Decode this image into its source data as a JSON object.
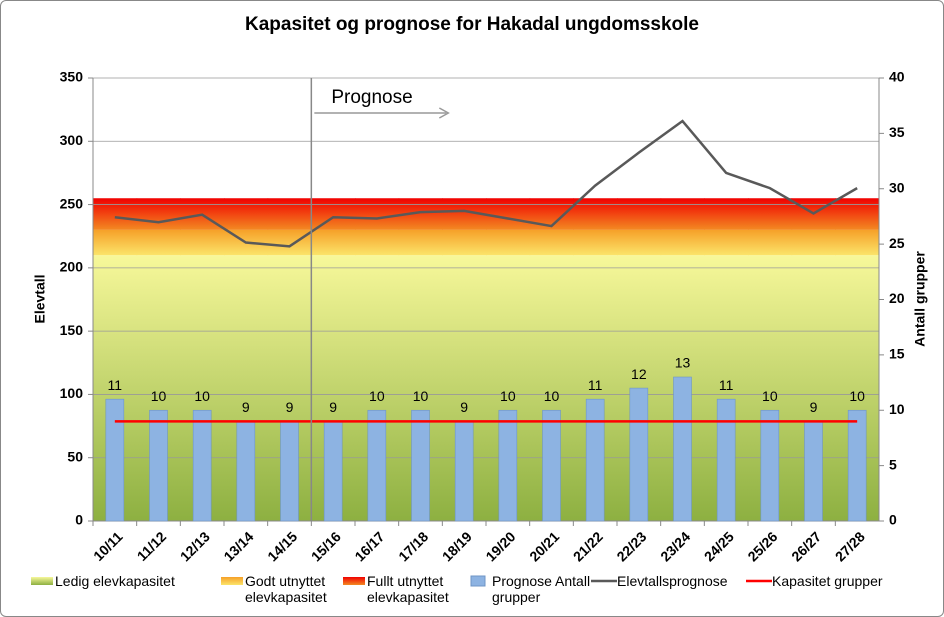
{
  "chart_data": {
    "type": "combo",
    "title": "Kapasitet og prognose for Hakadal ungdomsskole",
    "y_label": "Elevtall",
    "y2_label": "Antall grupper",
    "annotation": "Prognose",
    "categories": [
      "10/11",
      "11/12",
      "12/13",
      "13/14",
      "14/15",
      "15/16",
      "16/17",
      "17/18",
      "18/19",
      "19/20",
      "20/21",
      "21/22",
      "22/23",
      "23/24",
      "24/25",
      "25/26",
      "26/27",
      "27/28"
    ],
    "ylim": [
      0,
      350
    ],
    "yticks": [
      0,
      50,
      100,
      150,
      200,
      250,
      300,
      350
    ],
    "y2lim": [
      0,
      40
    ],
    "y2ticks": [
      0,
      5,
      10,
      15,
      20,
      25,
      30,
      35,
      40
    ],
    "grid": true,
    "series": [
      {
        "name": "Ledig elevkapasitet",
        "type": "area",
        "colors": [
          "#8db041",
          "#f7f89a"
        ],
        "values": [
          210,
          210,
          210,
          210,
          210,
          210,
          210,
          210,
          210,
          210,
          210,
          210,
          210,
          210,
          210,
          210,
          210,
          210
        ]
      },
      {
        "name": "Godt utnyttet elevkapasitet",
        "type": "area",
        "colors": [
          "#fbe46a",
          "#f6a028"
        ],
        "values": [
          20,
          20,
          20,
          20,
          20,
          20,
          20,
          20,
          20,
          20,
          20,
          20,
          20,
          20,
          20,
          20,
          20,
          20
        ]
      },
      {
        "name": "Fullt utnyttet elevkapasitet",
        "type": "area",
        "colors": [
          "#f38a22",
          "#f00000"
        ],
        "values": [
          25,
          25,
          25,
          25,
          25,
          25,
          25,
          25,
          25,
          25,
          25,
          25,
          25,
          25,
          25,
          25,
          25,
          25
        ]
      },
      {
        "name": "Prognose Antall grupper",
        "type": "bar",
        "axis": "y2",
        "color": "#8db3e2",
        "values": [
          11,
          10,
          10,
          9,
          9,
          9,
          10,
          10,
          9,
          10,
          10,
          11,
          12,
          13,
          11,
          10,
          9,
          10
        ]
      },
      {
        "name": "Elevtallsprognose",
        "type": "line",
        "color": "#595959",
        "values": [
          240,
          236,
          242,
          220,
          217,
          240,
          239,
          244,
          245,
          239,
          233,
          265,
          291,
          316,
          275,
          263,
          243,
          263
        ]
      },
      {
        "name": "Kapasitet grupper",
        "type": "line",
        "axis": "y2",
        "color": "#ff0000",
        "values": [
          9,
          9,
          9,
          9,
          9,
          9,
          9,
          9,
          9,
          9,
          9,
          9,
          9,
          9,
          9,
          9,
          9,
          9
        ]
      }
    ]
  }
}
